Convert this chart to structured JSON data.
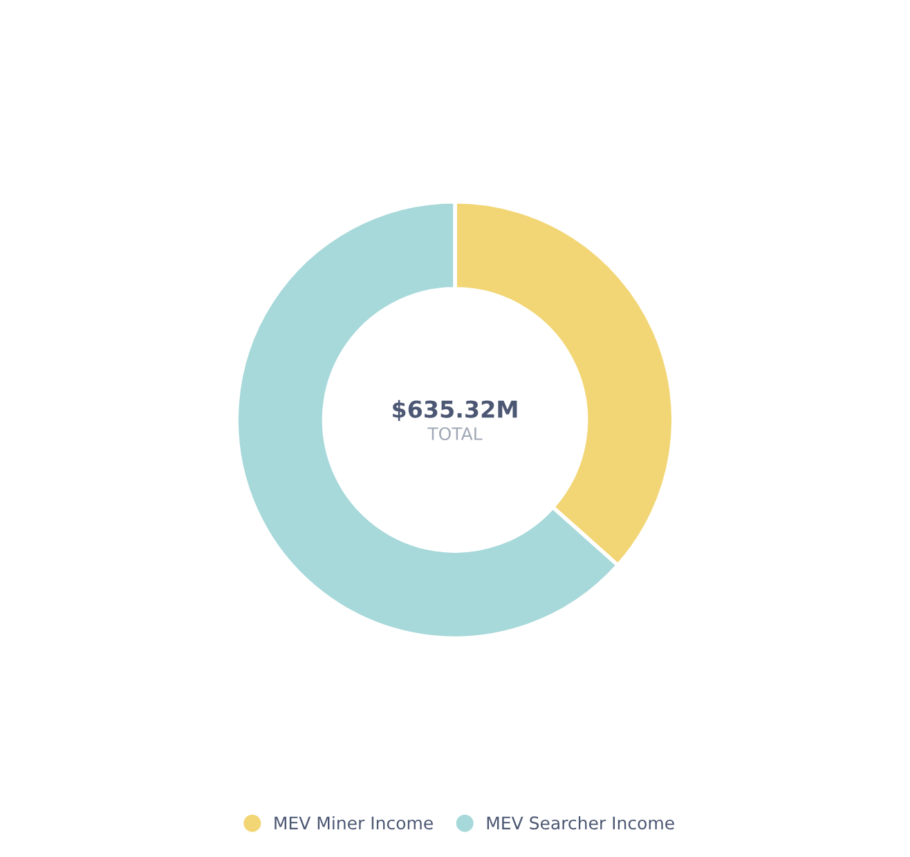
{
  "chart_data": {
    "type": "donut",
    "categories": [
      "MEV Miner Income",
      "MEV Searcher Income"
    ],
    "values": [
      36.6,
      63.4
    ],
    "colors": [
      "#f2d675",
      "#a7d8da"
    ],
    "annotations": [
      "$635.32M",
      "TOTAL"
    ],
    "legend": "bottom"
  }
}
